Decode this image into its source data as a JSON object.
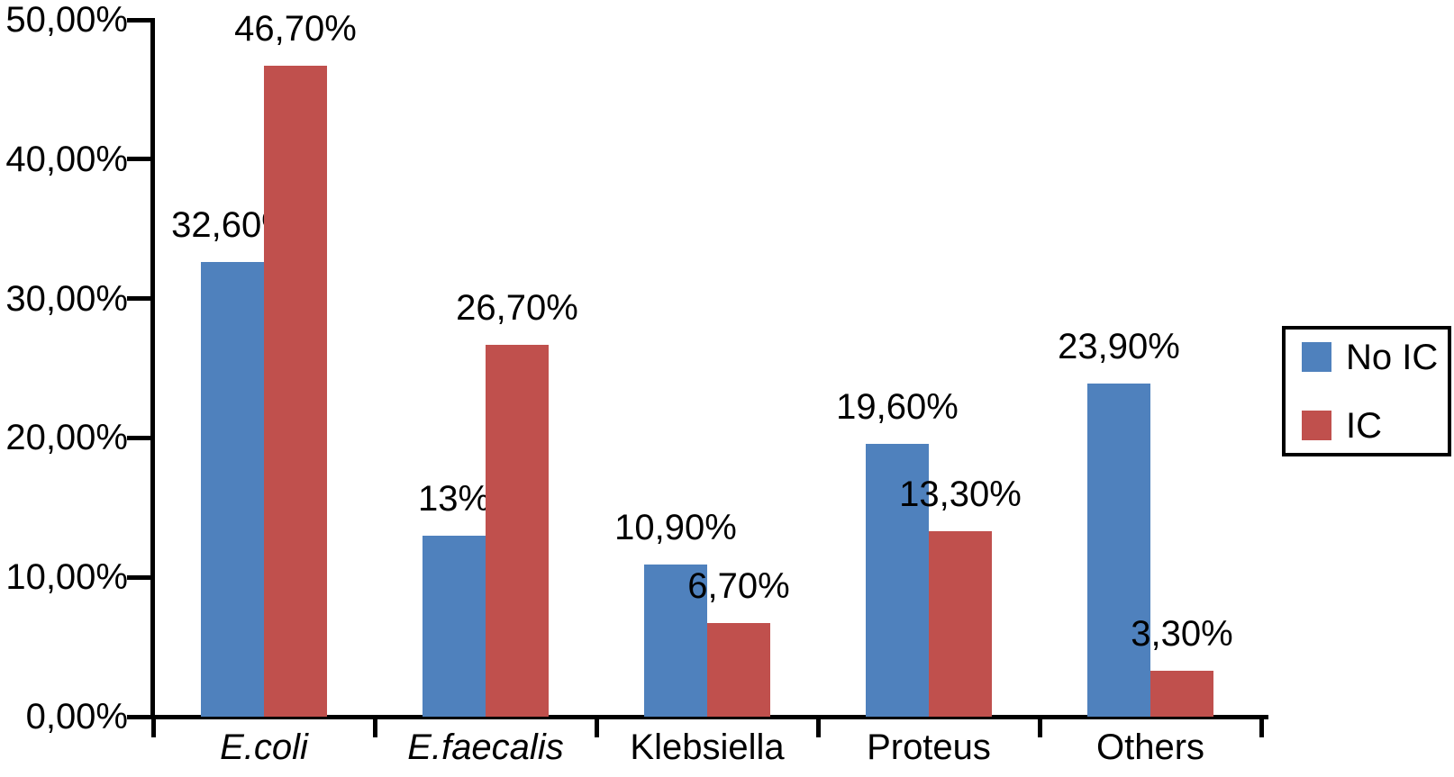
{
  "chart_data": {
    "type": "bar",
    "title": "",
    "xlabel": "",
    "ylabel": "",
    "grid": false,
    "categories": [
      {
        "label": "E.coli",
        "italic": true
      },
      {
        "label": "E.faecalis",
        "italic": true
      },
      {
        "label": "Klebsiella",
        "italic": false
      },
      {
        "label": "Proteus",
        "italic": false
      },
      {
        "label": "Others",
        "italic": false
      }
    ],
    "series": [
      {
        "name": "No IC",
        "color": "#4F81BD",
        "values": [
          32.6,
          13,
          10.9,
          19.6,
          23.9
        ],
        "value_labels": [
          "32,60%",
          "13%",
          "10,90%",
          "19,60%",
          "23,90%"
        ]
      },
      {
        "name": "IC",
        "color": "#C0504D",
        "values": [
          46.7,
          26.7,
          6.7,
          13.3,
          3.3
        ],
        "value_labels": [
          "46,70%",
          "26,70%",
          "6,70%",
          "13,30%",
          "3,30%"
        ]
      }
    ],
    "y_axis": {
      "min": 0,
      "max": 50,
      "tick_step": 10,
      "tick_labels": [
        "0,00%",
        "10,00%",
        "20,00%",
        "30,00%",
        "40,00%",
        "50,00%"
      ]
    },
    "legend": {
      "position": "right",
      "items": [
        {
          "label": "No IC",
          "color": "#4F81BD"
        },
        {
          "label": "IC",
          "color": "#C0504D"
        }
      ]
    }
  }
}
